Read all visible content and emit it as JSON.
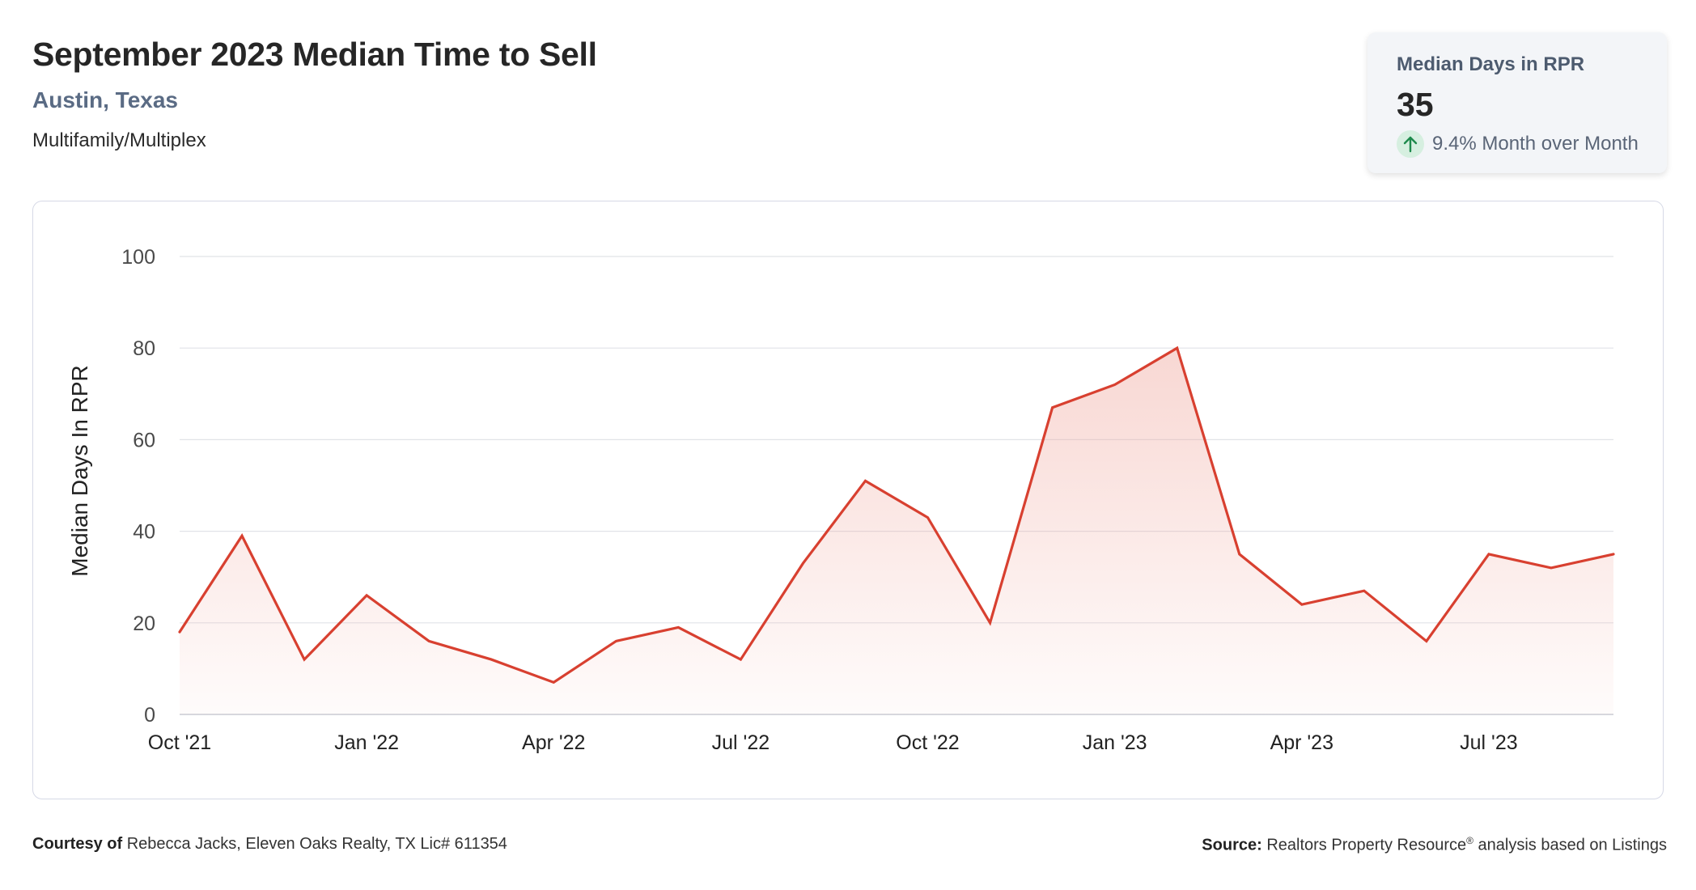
{
  "header": {
    "title": "September 2023 Median Time to Sell",
    "location": "Austin, Texas",
    "property_type": "Multifamily/Multiplex"
  },
  "stat_card": {
    "label": "Median Days in RPR",
    "value": "35",
    "change": "9.4% Month over Month",
    "change_direction": "up",
    "change_icon": "arrow-up-icon",
    "change_color": "#1e8a4c"
  },
  "chart_data": {
    "type": "area",
    "ylabel": "Median Days In RPR",
    "xlabel": "",
    "ylim": [
      0,
      100
    ],
    "y_ticks": [
      0,
      20,
      40,
      60,
      80,
      100
    ],
    "x_tick_labels": [
      "Oct '21",
      "Jan '22",
      "Apr '22",
      "Jul '22",
      "Oct '22",
      "Jan '23",
      "Apr '23",
      "Jul '23"
    ],
    "x": [
      "2021-10",
      "2021-11",
      "2021-12",
      "2022-01",
      "2022-02",
      "2022-03",
      "2022-04",
      "2022-05",
      "2022-06",
      "2022-07",
      "2022-08",
      "2022-09",
      "2022-10",
      "2022-11",
      "2022-12",
      "2023-01",
      "2023-02",
      "2023-03",
      "2023-04",
      "2023-05",
      "2023-06",
      "2023-07",
      "2023-08",
      "2023-09"
    ],
    "series": [
      {
        "values": [
          18,
          39,
          12,
          26,
          16,
          12,
          7,
          16,
          19,
          12,
          33,
          51,
          43,
          20,
          67,
          72,
          80,
          35,
          24,
          27,
          16,
          35,
          32,
          35
        ]
      }
    ],
    "grid": true,
    "line_color": "#d84030",
    "fill_color": "#f0a79d"
  },
  "footer": {
    "courtesy_label": "Courtesy of",
    "courtesy_text": "Rebecca Jacks, Eleven Oaks Realty, TX Lic# 611354",
    "source_label": "Source:",
    "source_text_1": "Realtors Property Resource",
    "source_sup": "®",
    "source_text_2": "analysis based on Listings"
  }
}
